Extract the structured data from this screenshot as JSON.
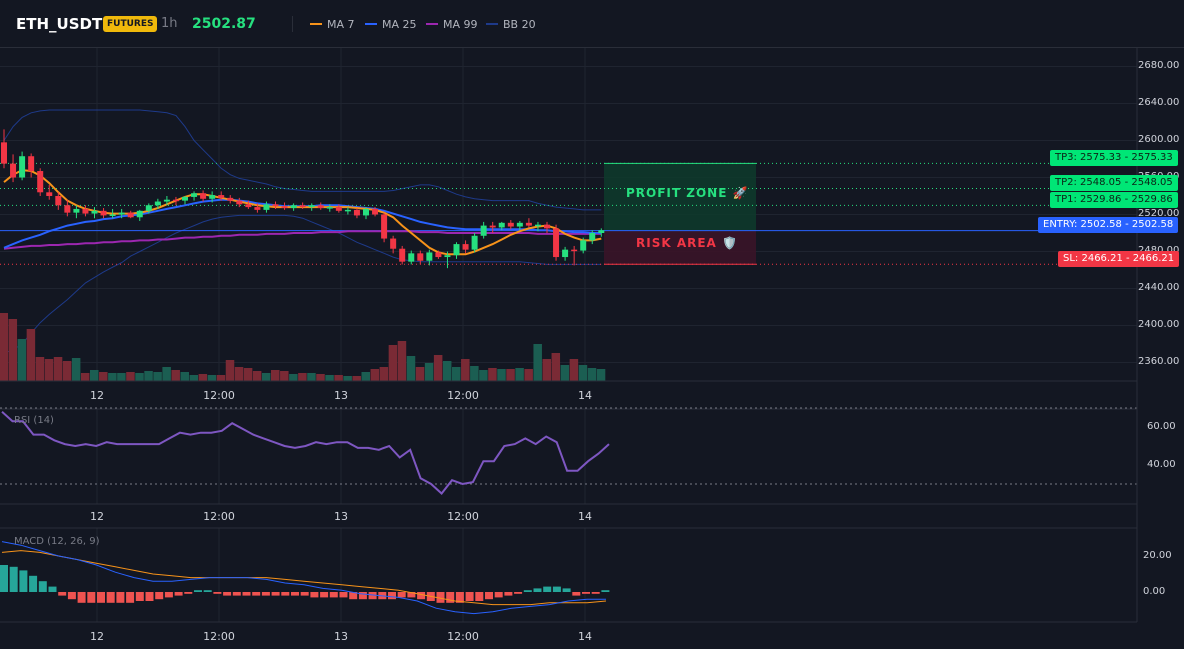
{
  "header": {
    "symbol": "ETH_USDT",
    "badge": "FUTURES",
    "interval": "1h",
    "price": "2502.87",
    "legend": [
      {
        "label": "MA 7",
        "color": "#f7931a"
      },
      {
        "label": "MA 25",
        "color": "#2962ff"
      },
      {
        "label": "MA 99",
        "color": "#9c27b0"
      },
      {
        "label": "BB 20",
        "color": "#1e3a8a"
      }
    ]
  },
  "colors": {
    "up": "#26e07f",
    "down": "#f23645",
    "vol_up": "#1b5e52",
    "vol_down": "#7a2a35",
    "ma7": "#f7931a",
    "ma25": "#2962ff",
    "ma99": "#9c27b0",
    "bb": "#1e3a8a",
    "rsi": "#7e57c2",
    "macd_line": "#2962ff",
    "signal_line": "#f7931a",
    "hist_pos": "#26a69a",
    "hist_neg": "#ef5350"
  },
  "price_axis": {
    "min": 2340,
    "max": 2700,
    "ticks": [
      "2680.00",
      "2640.00",
      "2600.00",
      "2560.00",
      "2520.00",
      "2480.00",
      "2440.00",
      "2400.00",
      "2360.00"
    ]
  },
  "time_axis": [
    "12",
    "12:00",
    "13",
    "12:00",
    "14"
  ],
  "levels": {
    "tp3": {
      "label": "TP3: 2575.33",
      "value": "2575.33",
      "price": 2575.33
    },
    "tp2": {
      "label": "TP2: 2548.05",
      "value": "2548.05",
      "price": 2548.05
    },
    "tp1": {
      "label": "TP1: 2529.86",
      "value": "2529.86",
      "price": 2529.86
    },
    "entry": {
      "label": "ENTRY: 2502.58",
      "value": "2502.58",
      "price": 2502.58
    },
    "sl": {
      "label": "SL: 2466.21",
      "value": "2466.21",
      "price": 2466.21
    }
  },
  "zones": {
    "profit": "PROFIT ZONE 🚀",
    "risk": "RISK AREA 🛡️"
  },
  "rsi": {
    "label": "RSI (14)",
    "ticks": [
      "60.00",
      "40.00"
    ],
    "upper": 70,
    "lower": 30,
    "values": [
      68,
      63,
      63,
      56,
      56,
      53,
      51,
      50,
      51,
      50,
      52,
      51,
      51,
      51,
      51,
      51,
      54,
      57,
      56,
      57,
      57,
      58,
      62,
      59,
      56,
      54,
      52,
      50,
      49,
      50,
      52,
      51,
      52,
      52,
      49,
      49,
      48,
      50,
      44,
      48,
      33,
      30,
      25,
      32,
      30,
      31,
      42,
      42,
      50,
      51,
      54,
      51,
      55,
      52,
      37,
      37,
      42,
      46,
      51
    ]
  },
  "macd": {
    "label": "MACD (12, 26, 9)",
    "ticks": [
      "20.00",
      "0.00"
    ],
    "macd_line": [
      28,
      26,
      23,
      20,
      18,
      15,
      11,
      8,
      6,
      6,
      7,
      8,
      8,
      8,
      7,
      5,
      4,
      2,
      1,
      -1,
      -2,
      -3,
      -5,
      -9,
      -11,
      -12,
      -11,
      -9,
      -8,
      -7,
      -5,
      -4,
      -4
    ],
    "signal_line": [
      22,
      23,
      22,
      20,
      18,
      16,
      14,
      12,
      10,
      9,
      8,
      8,
      8,
      8,
      8,
      7,
      6,
      5,
      4,
      3,
      2,
      1,
      -1,
      -3,
      -5,
      -6,
      -7,
      -7,
      -7,
      -6,
      -6,
      -6,
      -5
    ],
    "histogram": [
      15,
      14,
      12,
      9,
      6,
      3,
      -2,
      -4,
      -6,
      -6,
      -6,
      -6,
      -6,
      -6,
      -5,
      -5,
      -4,
      -3,
      -2,
      -1,
      1,
      1,
      -1,
      -2,
      -2,
      -2,
      -2,
      -2,
      -2,
      -2,
      -2,
      -2,
      -3,
      -3,
      -3,
      -3,
      -4,
      -4,
      -4,
      -4,
      -4,
      -3,
      -3,
      -4,
      -5,
      -6,
      -6,
      -6,
      -5,
      -5,
      -4,
      -3,
      -2,
      -1,
      1,
      2,
      3,
      3,
      2,
      -2,
      -1,
      -1,
      1
    ]
  },
  "candles": [
    [
      2598,
      2612,
      2570,
      2575
    ],
    [
      2575,
      2585,
      2555,
      2560
    ],
    [
      2560,
      2588,
      2557,
      2583
    ],
    [
      2583,
      2586,
      2560,
      2567
    ],
    [
      2567,
      2570,
      2540,
      2544
    ],
    [
      2544,
      2552,
      2536,
      2540
    ],
    [
      2540,
      2544,
      2525,
      2530
    ],
    [
      2530,
      2536,
      2518,
      2522
    ],
    [
      2522,
      2530,
      2516,
      2526
    ],
    [
      2526,
      2530,
      2518,
      2521
    ],
    [
      2521,
      2528,
      2516,
      2524
    ],
    [
      2524,
      2527,
      2516,
      2519
    ],
    [
      2519,
      2526,
      2516,
      2520
    ],
    [
      2520,
      2526,
      2516,
      2522
    ],
    [
      2522,
      2524,
      2516,
      2517
    ],
    [
      2517,
      2525,
      2513,
      2524
    ],
    [
      2524,
      2532,
      2521,
      2530
    ],
    [
      2530,
      2537,
      2526,
      2534
    ],
    [
      2534,
      2540,
      2530,
      2536
    ],
    [
      2536,
      2539,
      2530,
      2535
    ],
    [
      2535,
      2540,
      2531,
      2539
    ],
    [
      2539,
      2545,
      2535,
      2543
    ],
    [
      2543,
      2546,
      2534,
      2537
    ],
    [
      2537,
      2545,
      2533,
      2541
    ],
    [
      2541,
      2545,
      2535,
      2538
    ],
    [
      2538,
      2541,
      2532,
      2535
    ],
    [
      2535,
      2538,
      2528,
      2531
    ],
    [
      2531,
      2535,
      2526,
      2528
    ],
    [
      2528,
      2532,
      2522,
      2525
    ],
    [
      2525,
      2534,
      2522,
      2531
    ],
    [
      2531,
      2534,
      2526,
      2529
    ],
    [
      2529,
      2533,
      2525,
      2527
    ],
    [
      2527,
      2532,
      2524,
      2530
    ],
    [
      2530,
      2533,
      2526,
      2528
    ],
    [
      2528,
      2532,
      2524,
      2530
    ],
    [
      2530,
      2533,
      2525,
      2527
    ],
    [
      2527,
      2531,
      2523,
      2528
    ],
    [
      2528,
      2531,
      2522,
      2524
    ],
    [
      2524,
      2528,
      2520,
      2525
    ],
    [
      2525,
      2527,
      2516,
      2519
    ],
    [
      2519,
      2528,
      2515,
      2526
    ],
    [
      2526,
      2528,
      2518,
      2520
    ],
    [
      2520,
      2522,
      2490,
      2494
    ],
    [
      2494,
      2497,
      2478,
      2483
    ],
    [
      2483,
      2486,
      2466,
      2469
    ],
    [
      2469,
      2481,
      2466,
      2478
    ],
    [
      2478,
      2481,
      2466,
      2470
    ],
    [
      2470,
      2482,
      2465,
      2479
    ],
    [
      2479,
      2481,
      2472,
      2474
    ],
    [
      2474,
      2480,
      2462,
      2476
    ],
    [
      2476,
      2490,
      2472,
      2488
    ],
    [
      2488,
      2492,
      2478,
      2482
    ],
    [
      2482,
      2500,
      2479,
      2497
    ],
    [
      2497,
      2512,
      2494,
      2508
    ],
    [
      2508,
      2512,
      2500,
      2506
    ],
    [
      2506,
      2512,
      2503,
      2511
    ],
    [
      2511,
      2514,
      2504,
      2507
    ],
    [
      2507,
      2513,
      2503,
      2511
    ],
    [
      2511,
      2516,
      2506,
      2508
    ],
    [
      2508,
      2512,
      2502,
      2509
    ],
    [
      2509,
      2512,
      2500,
      2505
    ],
    [
      2505,
      2509,
      2470,
      2474
    ],
    [
      2474,
      2485,
      2470,
      2482
    ],
    [
      2482,
      2486,
      2465,
      2481
    ],
    [
      2481,
      2495,
      2478,
      2492
    ],
    [
      2492,
      2503,
      2488,
      2500
    ],
    [
      2500,
      2505,
      2496,
      2503
    ]
  ],
  "volumes": [
    68,
    62,
    42,
    52,
    24,
    22,
    24,
    20,
    23,
    8,
    11,
    9,
    8,
    8,
    9,
    8,
    10,
    9,
    14,
    11,
    9,
    6,
    7,
    6,
    6,
    21,
    14,
    13,
    10,
    8,
    11,
    10,
    7,
    8,
    8,
    7,
    6,
    6,
    5,
    5,
    9,
    12,
    14,
    36,
    40,
    25,
    14,
    18,
    26,
    20,
    14,
    22,
    15,
    11,
    13,
    12,
    12,
    13,
    12,
    37,
    22,
    28,
    16,
    22,
    16,
    13,
    12
  ],
  "ma7": [
    2555,
    2563,
    2568,
    2567,
    2562,
    2554,
    2544,
    2535,
    2530,
    2526,
    2524,
    2522,
    2521,
    2521,
    2521,
    2522,
    2524,
    2527,
    2531,
    2535,
    2539,
    2542,
    2542,
    2540,
    2538,
    2536,
    2534,
    2532,
    2530,
    2529,
    2528,
    2528,
    2528,
    2528,
    2528,
    2528,
    2528,
    2528,
    2528,
    2527,
    2526,
    2525,
    2522,
    2517,
    2508,
    2500,
    2492,
    2484,
    2479,
    2477,
    2477,
    2477,
    2480,
    2484,
    2488,
    2493,
    2498,
    2502,
    2505,
    2507,
    2508,
    2505,
    2499,
    2495,
    2492,
    2492,
    2494
  ],
  "ma25": [
    2484,
    2488,
    2492,
    2495,
    2498,
    2502,
    2505,
    2508,
    2510,
    2512,
    2513,
    2515,
    2516,
    2518,
    2519,
    2520,
    2522,
    2524,
    2526,
    2528,
    2530,
    2532,
    2534,
    2535,
    2536,
    2536,
    2535,
    2534,
    2532,
    2531,
    2530,
    2529,
    2529,
    2529,
    2529,
    2530,
    2530,
    2530,
    2529,
    2528,
    2527,
    2526,
    2524,
    2521,
    2518,
    2515,
    2512,
    2510,
    2508,
    2506,
    2505,
    2504,
    2504,
    2504,
    2504,
    2504,
    2504,
    2504,
    2504,
    2503,
    2503,
    2502,
    2502,
    2501,
    2501,
    2500,
    2500
  ],
  "ma99": [
    2483,
    2484,
    2485,
    2486,
    2486,
    2487,
    2487,
    2488,
    2488,
    2489,
    2489,
    2490,
    2490,
    2491,
    2491,
    2492,
    2492,
    2493,
    2493,
    2494,
    2495,
    2495,
    2496,
    2496,
    2497,
    2497,
    2498,
    2498,
    2498,
    2499,
    2499,
    2499,
    2500,
    2500,
    2500,
    2501,
    2501,
    2501,
    2502,
    2502,
    2502,
    2502,
    2502,
    2502,
    2502,
    2502,
    2501,
    2501,
    2501,
    2500,
    2500,
    2500,
    2500,
    2500,
    2500,
    2500,
    2500,
    2500,
    2500,
    2499,
    2499,
    2499,
    2499,
    2499,
    2499,
    2499,
    2499
  ],
  "bb_upper": [
    2600,
    2615,
    2625,
    2630,
    2632,
    2633,
    2633,
    2633,
    2633,
    2633,
    2633,
    2633,
    2633,
    2633,
    2633,
    2633,
    2632,
    2631,
    2630,
    2627,
    2615,
    2600,
    2590,
    2580,
    2570,
    2563,
    2559,
    2557,
    2555,
    2553,
    2550,
    2548,
    2547,
    2546,
    2545,
    2545,
    2545,
    2545,
    2545,
    2545,
    2545,
    2545,
    2545,
    2546,
    2548,
    2550,
    2552,
    2552,
    2550,
    2546,
    2542,
    2539,
    2537,
    2536,
    2535,
    2535,
    2535,
    2535,
    2535,
    2532,
    2530,
    2528,
    2527,
    2526,
    2525,
    2525,
    2525
  ],
  "bb_lower": [
    2370,
    2374,
    2380,
    2392,
    2403,
    2412,
    2420,
    2428,
    2437,
    2446,
    2452,
    2458,
    2463,
    2468,
    2475,
    2480,
    2485,
    2490,
    2495,
    2500,
    2504,
    2508,
    2512,
    2515,
    2517,
    2518,
    2519,
    2519,
    2519,
    2519,
    2519,
    2519,
    2518,
    2516,
    2512,
    2508,
    2504,
    2500,
    2495,
    2490,
    2486,
    2482,
    2478,
    2474,
    2471,
    2470,
    2469,
    2469,
    2469,
    2469,
    2469,
    2469,
    2469,
    2469,
    2469,
    2469,
    2469,
    2469,
    2468,
    2467,
    2466,
    2466,
    2466,
    2466,
    2466,
    2466,
    2466
  ]
}
